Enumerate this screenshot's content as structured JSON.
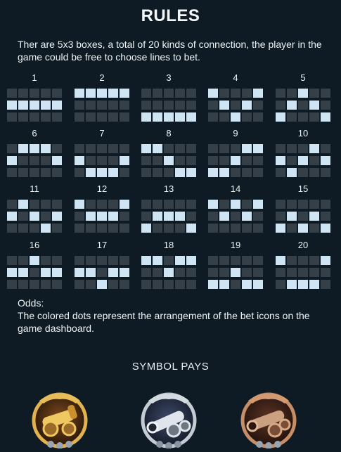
{
  "title": "RULES",
  "intro": "Ther are 5x3 boxes, a total of 20 kinds of connection, the player in the game could be free to choose lines to bet.",
  "paylines": [
    {
      "num": "1",
      "rows": [
        "00000",
        "11111",
        "00000"
      ]
    },
    {
      "num": "2",
      "rows": [
        "11111",
        "00000",
        "00000"
      ]
    },
    {
      "num": "3",
      "rows": [
        "00000",
        "00000",
        "11111"
      ]
    },
    {
      "num": "4",
      "rows": [
        "10001",
        "01010",
        "00100"
      ]
    },
    {
      "num": "5",
      "rows": [
        "00100",
        "01010",
        "10001"
      ]
    },
    {
      "num": "6",
      "rows": [
        "01110",
        "10001",
        "00000"
      ]
    },
    {
      "num": "7",
      "rows": [
        "00000",
        "10001",
        "01110"
      ]
    },
    {
      "num": "8",
      "rows": [
        "11000",
        "00100",
        "00011"
      ]
    },
    {
      "num": "9",
      "rows": [
        "00011",
        "00100",
        "11000"
      ]
    },
    {
      "num": "10",
      "rows": [
        "00010",
        "10101",
        "01000"
      ]
    },
    {
      "num": "11",
      "rows": [
        "01000",
        "10101",
        "00010"
      ]
    },
    {
      "num": "12",
      "rows": [
        "10001",
        "01110",
        "00000"
      ]
    },
    {
      "num": "13",
      "rows": [
        "00000",
        "01110",
        "10001"
      ]
    },
    {
      "num": "14",
      "rows": [
        "10101",
        "01010",
        "00000"
      ]
    },
    {
      "num": "15",
      "rows": [
        "00000",
        "01010",
        "10101"
      ]
    },
    {
      "num": "16",
      "rows": [
        "00100",
        "11011",
        "00000"
      ]
    },
    {
      "num": "17",
      "rows": [
        "00000",
        "11011",
        "00100"
      ]
    },
    {
      "num": "18",
      "rows": [
        "11011",
        "00100",
        "00000"
      ]
    },
    {
      "num": "19",
      "rows": [
        "00000",
        "00100",
        "11011"
      ]
    },
    {
      "num": "20",
      "rows": [
        "10001",
        "00000",
        "01110"
      ]
    }
  ],
  "odds_label": "Odds:",
  "odds_text": "The colored dots represent the arrangement of the bet icons on the game dashboard.",
  "symbols_title": "SYMBOL PAYS",
  "symbols": [
    {
      "icon": "gold-cannon-icon"
    },
    {
      "icon": "silver-cannon-icon"
    },
    {
      "icon": "bronze-cannon-icon"
    }
  ],
  "colors": {
    "background": "#0f1b24",
    "cell_off": "#343f47",
    "cell_on": "#cfe5f3",
    "gold": "#d9a441",
    "silver": "#b9c2c8",
    "bronze": "#b27a55"
  }
}
